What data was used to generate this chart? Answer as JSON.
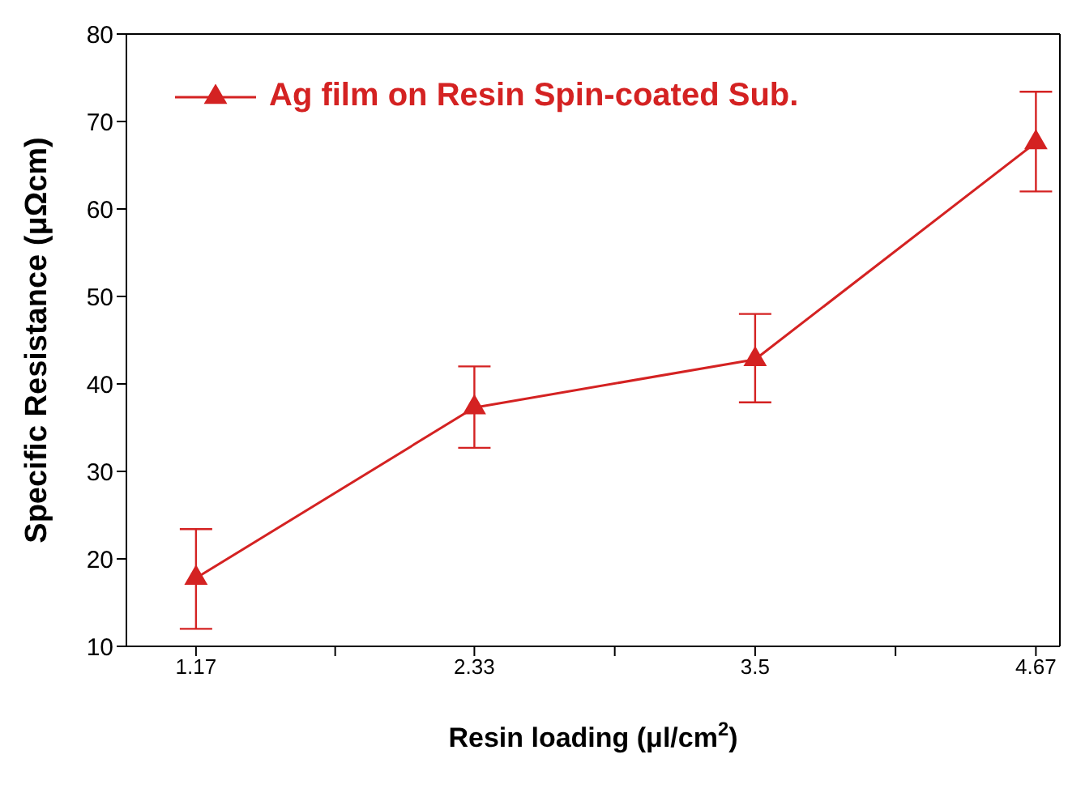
{
  "chart_data": {
    "type": "line",
    "xlabel": "Resin loading (μl/cm$^{2}$)",
    "ylabel": "Specific Resistance (μΩcm)",
    "x": [
      1.17,
      2.33,
      3.5,
      4.67
    ],
    "series": [
      {
        "name": "Ag film on Resin Spin-coated Sub.",
        "color": "#d42222",
        "values": [
          17.8,
          37.3,
          42.8,
          67.6
        ],
        "errors": [
          [
            12,
            23.4
          ],
          [
            32.7,
            42
          ],
          [
            37.9,
            48
          ],
          [
            62,
            73.4
          ]
        ]
      }
    ],
    "xlim": [
      0.88,
      4.77
    ],
    "xticks": [
      1.17,
      {
        "value": 1.75,
        "label": null
      },
      2.33,
      {
        "value": 2.915,
        "label": null
      },
      3.5,
      {
        "value": 4.085,
        "label": null
      },
      4.67
    ],
    "ylim": [
      10,
      80
    ],
    "yticks": [
      10,
      20,
      30,
      40,
      50,
      60,
      70,
      80
    ],
    "grid": false,
    "legend": "top left",
    "marker": "triangle",
    "line_style": "solid"
  }
}
